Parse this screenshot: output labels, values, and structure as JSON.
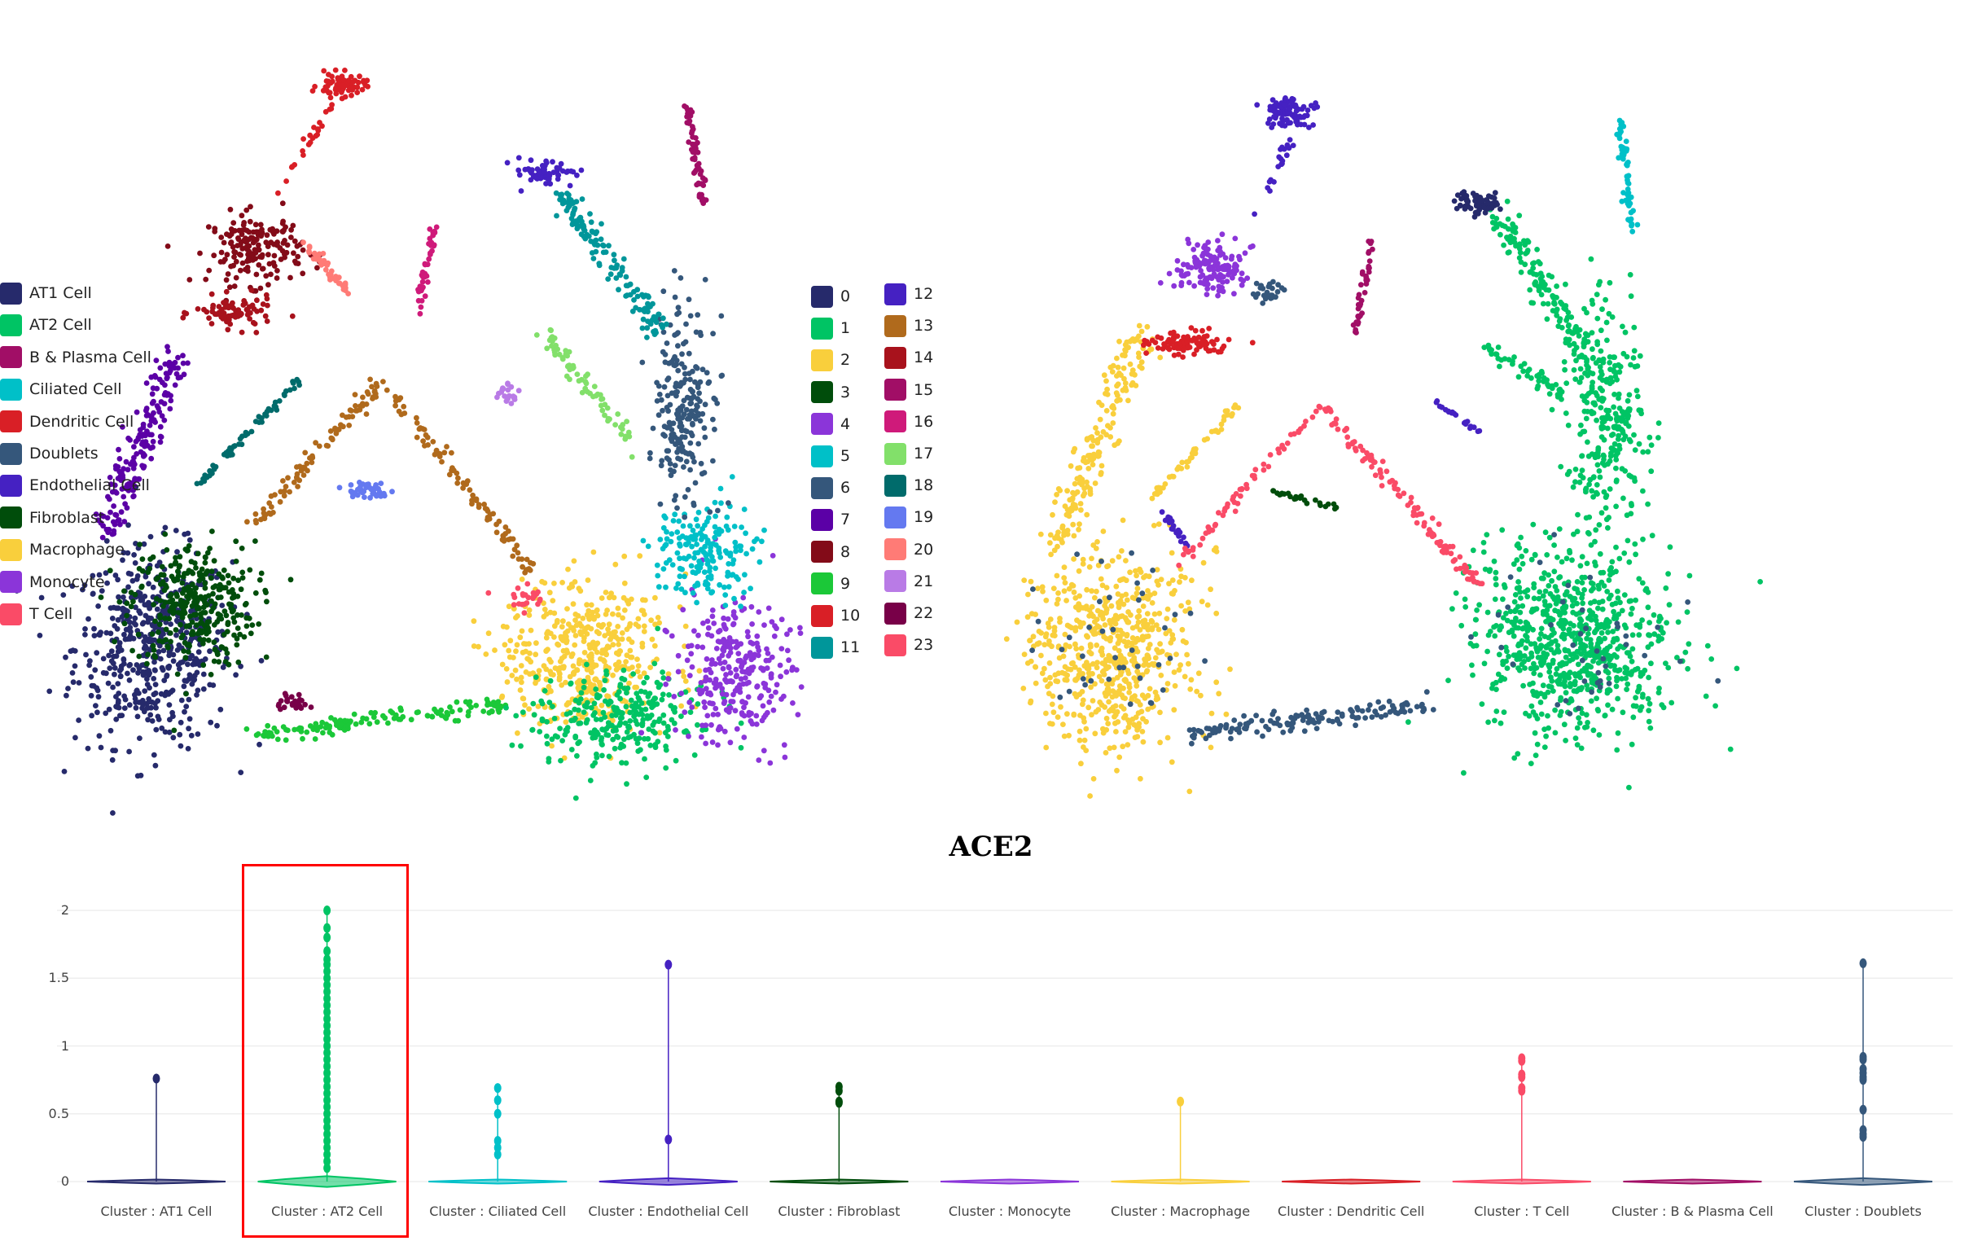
{
  "chart_data": [
    {
      "type": "scatter",
      "title": "",
      "legend": "right",
      "xlim": [
        -10.2,
        10.2
      ],
      "ylim": [
        -10,
        10.2
      ],
      "legend_entries": [
        {
          "label": "0",
          "color": "#262a6b"
        },
        {
          "label": "1",
          "color": "#00c464"
        },
        {
          "label": "2",
          "color": "#f9cf3c"
        },
        {
          "label": "3",
          "color": "#004d0b"
        },
        {
          "label": "4",
          "color": "#8b35d9"
        },
        {
          "label": "5",
          "color": "#00c0c8"
        },
        {
          "label": "6",
          "color": "#35577b"
        },
        {
          "label": "7",
          "color": "#5b00a6"
        },
        {
          "label": "8",
          "color": "#830b18"
        },
        {
          "label": "9",
          "color": "#1bc838"
        },
        {
          "label": "10",
          "color": "#d91f26"
        },
        {
          "label": "11",
          "color": "#00969a"
        },
        {
          "label": "12",
          "color": "#4521c2"
        },
        {
          "label": "13",
          "color": "#b06a1c"
        },
        {
          "label": "14",
          "color": "#a8121c"
        },
        {
          "label": "15",
          "color": "#a10e66"
        },
        {
          "label": "16",
          "color": "#cf1a7a"
        },
        {
          "label": "17",
          "color": "#82e06a"
        },
        {
          "label": "18",
          "color": "#006b6b"
        },
        {
          "label": "19",
          "color": "#6479f0"
        },
        {
          "label": "20",
          "color": "#ff7b76"
        },
        {
          "label": "21",
          "color": "#b97be6"
        },
        {
          "label": "22",
          "color": "#780048"
        },
        {
          "label": "23",
          "color": "#fa4b67"
        }
      ],
      "groups": [
        {
          "label": "0",
          "blob": [
            -7.5,
            -6.4,
            2.0,
            2.5
          ],
          "n": 520
        },
        {
          "label": "3",
          "blob": [
            -6.4,
            -5.2,
            1.6,
            1.6
          ],
          "n": 320
        },
        {
          "label": "7",
          "line": [
            -8.9,
            -3.2,
            -6.8,
            1.8
          ],
          "w": 0.6,
          "n": 180
        },
        {
          "label": "8",
          "blob": [
            -4.6,
            4.8,
            1.2,
            0.9
          ],
          "n": 180
        },
        {
          "label": "14",
          "blob": [
            -5.2,
            3.0,
            1.0,
            0.4
          ],
          "n": 80
        },
        {
          "label": "10",
          "blob": [
            -2.2,
            9.4,
            0.6,
            0.3
          ],
          "n": 70
        },
        {
          "label": "10",
          "line": [
            -2.4,
            8.9,
            -4.3,
            5.9
          ],
          "w": 0.15,
          "n": 25
        },
        {
          "label": "9",
          "line": [
            -4.6,
            -8.9,
            2.5,
            -8.0
          ],
          "w": 0.3,
          "n": 140
        },
        {
          "label": "2",
          "blob": [
            4.6,
            -6.6,
            2.1,
            2.0
          ],
          "n": 450
        },
        {
          "label": "1",
          "blob": [
            5.7,
            -8.4,
            2.1,
            1.2
          ],
          "n": 280
        },
        {
          "label": "4",
          "blob": [
            8.8,
            -7.1,
            1.5,
            1.8
          ],
          "n": 280
        },
        {
          "label": "5",
          "blob": [
            8.0,
            -3.6,
            1.3,
            1.3
          ],
          "n": 180
        },
        {
          "label": "6",
          "blob": [
            7.5,
            0.4,
            0.8,
            2.4
          ],
          "n": 220
        },
        {
          "label": "11",
          "line": [
            3.9,
            6.4,
            6.8,
            2.5
          ],
          "w": 0.4,
          "n": 140
        },
        {
          "label": "12",
          "blob": [
            3.6,
            6.9,
            0.7,
            0.3
          ],
          "n": 60
        },
        {
          "label": "13",
          "line": [
            -4.6,
            -2.9,
            -1.1,
            1.1
          ],
          "w": 0.25,
          "n": 90
        },
        {
          "label": "13",
          "line": [
            -1.1,
            1.1,
            3.2,
            -4.3
          ],
          "w": 0.25,
          "n": 90
        },
        {
          "label": "18",
          "line": [
            -6.4,
            -2.0,
            -3.4,
            1.1
          ],
          "w": 0.15,
          "n": 60
        },
        {
          "label": "19",
          "blob": [
            -1.4,
            -2.0,
            0.6,
            0.2
          ],
          "n": 40
        },
        {
          "label": "15",
          "line": [
            7.5,
            9.1,
            8.0,
            6.1
          ],
          "w": 0.15,
          "n": 60
        },
        {
          "label": "16",
          "line": [
            0.4,
            5.4,
            0.0,
            3.0
          ],
          "w": 0.15,
          "n": 40
        },
        {
          "label": "17",
          "line": [
            3.6,
            2.3,
            6.1,
            -0.7
          ],
          "w": 0.35,
          "n": 70
        },
        {
          "label": "20",
          "line": [
            -3.2,
            5.0,
            -2.0,
            3.6
          ],
          "w": 0.2,
          "n": 40
        },
        {
          "label": "21",
          "blob": [
            2.5,
            0.7,
            0.3,
            0.3
          ],
          "n": 20
        },
        {
          "label": "22",
          "blob": [
            -3.6,
            -8.0,
            0.5,
            0.2
          ],
          "n": 25
        },
        {
          "label": "23",
          "blob": [
            3.0,
            -5.0,
            0.4,
            0.3
          ],
          "n": 25
        }
      ]
    },
    {
      "type": "scatter",
      "title": "",
      "legend": "right",
      "xlim": [
        -10,
        10.2
      ],
      "ylim": [
        -10,
        10
      ],
      "legend_entries": [
        {
          "label": "AT1 Cell",
          "color": "#262a6b"
        },
        {
          "label": "AT2 Cell",
          "color": "#00c464"
        },
        {
          "label": "B & Plasma Cell",
          "color": "#a10e66"
        },
        {
          "label": "Ciliated Cell",
          "color": "#00c0c8"
        },
        {
          "label": "Dendritic Cell",
          "color": "#d91f26"
        },
        {
          "label": "Doublets",
          "color": "#35577b"
        },
        {
          "label": "Endothelial Cell",
          "color": "#4521c2"
        },
        {
          "label": "Fibroblast",
          "color": "#004d0b"
        },
        {
          "label": "Macrophage",
          "color": "#f9cf3c"
        },
        {
          "label": "Monocyte",
          "color": "#8b35d9"
        },
        {
          "label": "T Cell",
          "color": "#fa4b67"
        }
      ],
      "groups": [
        {
          "label": "Macrophage",
          "blob": [
            -7.2,
            -6.5,
            2.2,
            2.6
          ],
          "n": 620
        },
        {
          "label": "Macrophage",
          "line": [
            -8.9,
            -3.5,
            -6.3,
            2.8
          ],
          "w": 0.6,
          "n": 180
        },
        {
          "label": "Macrophage",
          "line": [
            -6.1,
            -2.2,
            -3.5,
            0.6
          ],
          "w": 0.15,
          "n": 50
        },
        {
          "label": "AT2 Cell",
          "blob": [
            6.3,
            -6.3,
            2.6,
            2.5
          ],
          "n": 750
        },
        {
          "label": "AT2 Cell",
          "blob": [
            7.2,
            0.2,
            1.0,
            2.8
          ],
          "n": 280
        },
        {
          "label": "AT2 Cell",
          "line": [
            4.1,
            6.1,
            6.9,
            1.7
          ],
          "w": 0.5,
          "n": 160
        },
        {
          "label": "AT2 Cell",
          "line": [
            3.7,
            2.2,
            5.9,
            0.9
          ],
          "w": 0.3,
          "n": 50
        },
        {
          "label": "Doublets",
          "line": [
            -5.0,
            -9.0,
            2.2,
            -8.1
          ],
          "w": 0.35,
          "n": 140
        },
        {
          "label": "Doublets",
          "blob": [
            -2.6,
            3.9,
            0.4,
            0.4
          ],
          "n": 25
        },
        {
          "label": "Doublets",
          "blob": [
            -7.2,
            -6.5,
            2.2,
            2.6
          ],
          "n": 40
        },
        {
          "label": "Doublets",
          "blob": [
            6.3,
            -6.3,
            2.6,
            2.5
          ],
          "n": 40
        },
        {
          "label": "AT1 Cell",
          "blob": [
            3.5,
            6.5,
            0.6,
            0.3
          ],
          "n": 70
        },
        {
          "label": "Endothelial Cell",
          "blob": [
            -2.1,
            9.1,
            0.6,
            0.4
          ],
          "n": 90
        },
        {
          "label": "Endothelial Cell",
          "line": [
            -2.0,
            8.3,
            -3.0,
            6.1
          ],
          "w": 0.15,
          "n": 20
        },
        {
          "label": "Endothelial Cell",
          "line": [
            -5.7,
            -2.6,
            -5.0,
            -3.5
          ],
          "w": 0.15,
          "n": 20
        },
        {
          "label": "Endothelial Cell",
          "line": [
            2.2,
            0.7,
            3.5,
            -0.2
          ],
          "w": 0.1,
          "n": 20
        },
        {
          "label": "Monocyte",
          "blob": [
            -4.3,
            4.6,
            0.9,
            0.7
          ],
          "n": 140
        },
        {
          "label": "Dendritic Cell",
          "blob": [
            -5.0,
            2.4,
            1.1,
            0.35
          ],
          "n": 90
        },
        {
          "label": "Ciliated Cell",
          "line": [
            7.6,
            8.9,
            8.0,
            5.6
          ],
          "w": 0.15,
          "n": 60
        },
        {
          "label": "B & Plasma Cell",
          "line": [
            0.4,
            5.4,
            -0.1,
            2.6
          ],
          "w": 0.15,
          "n": 40
        },
        {
          "label": "Fibroblast",
          "line": [
            -2.6,
            -1.9,
            -0.6,
            -2.4
          ],
          "w": 0.1,
          "n": 25
        },
        {
          "label": "T Cell",
          "line": [
            -1.1,
            0.6,
            3.5,
            -4.6
          ],
          "w": 0.25,
          "n": 110
        },
        {
          "label": "T Cell",
          "line": [
            -5.2,
            -3.9,
            -1.1,
            0.6
          ],
          "w": 0.2,
          "n": 60
        }
      ]
    },
    {
      "type": "violin",
      "title": "ACE2",
      "xlabel": "",
      "ylabel": "",
      "ylim": [
        -0.1,
        2.2
      ],
      "yticks": [
        "0",
        "0.5",
        "1",
        "1.5",
        "2"
      ],
      "grid": true,
      "highlighted": "Cluster : AT2 Cell",
      "categories": [
        {
          "label": "Cluster : AT1 Cell",
          "color": "#262a6b",
          "spread": 0.012,
          "points": [
            0.76
          ]
        },
        {
          "label": "Cluster : AT2 Cell",
          "color": "#00c464",
          "spread": 0.04,
          "points": [
            2.0,
            1.87,
            1.8,
            1.7,
            1.64,
            1.6,
            1.55,
            1.5,
            1.45,
            1.4,
            1.35,
            1.3,
            1.25,
            1.2,
            1.15,
            1.1,
            1.05,
            1.0,
            0.95,
            0.9,
            0.85,
            0.8,
            0.75,
            0.7,
            0.65,
            0.6,
            0.55,
            0.5,
            0.45,
            0.4,
            0.35,
            0.3,
            0.25,
            0.2,
            0.15,
            0.1
          ]
        },
        {
          "label": "Cluster : Ciliated Cell",
          "color": "#00c0c8",
          "spread": 0.012,
          "points": [
            0.69,
            0.6,
            0.5,
            0.3,
            0.25,
            0.2
          ]
        },
        {
          "label": "Cluster : Endothelial Cell",
          "color": "#4521c2",
          "spread": 0.025,
          "points": [
            1.6,
            0.31
          ]
        },
        {
          "label": "Cluster : Fibroblast",
          "color": "#004d0b",
          "spread": 0.012,
          "points": [
            0.7,
            0.67,
            0.59,
            0.58
          ]
        },
        {
          "label": "Cluster : Monocyte",
          "color": "#8b35d9",
          "spread": 0.006,
          "points": []
        },
        {
          "label": "Cluster : Macrophage",
          "color": "#f9cf3c",
          "spread": 0.01,
          "points": [
            0.59
          ]
        },
        {
          "label": "Cluster : Dendritic Cell",
          "color": "#d91f26",
          "spread": 0.006,
          "points": []
        },
        {
          "label": "Cluster : T Cell",
          "color": "#fa4b67",
          "spread": 0.015,
          "points": [
            0.91,
            0.89,
            0.79,
            0.77,
            0.69,
            0.67
          ]
        },
        {
          "label": "Cluster : B & Plasma Cell",
          "color": "#a10e66",
          "spread": 0.006,
          "points": []
        },
        {
          "label": "Cluster : Doublets",
          "color": "#35577b",
          "spread": 0.025,
          "points": [
            1.61,
            0.92,
            0.9,
            0.83,
            0.8,
            0.77,
            0.75,
            0.53,
            0.38,
            0.35,
            0.33
          ]
        }
      ]
    }
  ]
}
